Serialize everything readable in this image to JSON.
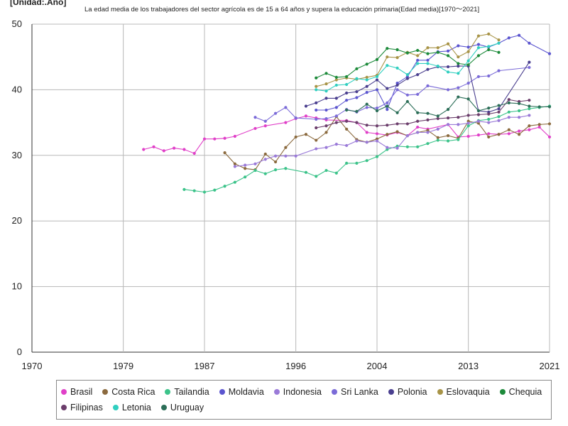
{
  "chart_data": {
    "type": "line",
    "unit_label": "[Unidad:.Año]",
    "title": "La edad media de los trabajadores del sector agrícola es de 15 a 64 años y supera la educación primaria(Edad media)[1970～2021]",
    "xlim": [
      1970,
      2021
    ],
    "ylim": [
      0,
      50
    ],
    "x_ticks": [
      "1970",
      "1979",
      "1987",
      "1996",
      "2004",
      "2013",
      "2021"
    ],
    "y_ticks": [
      "0",
      "10",
      "20",
      "30",
      "40",
      "50"
    ],
    "grid": true,
    "legend_position": "bottom",
    "series": [
      {
        "name": "Brasil",
        "color": "#e040c8",
        "points": [
          [
            1981,
            30.9
          ],
          [
            1982,
            31.3
          ],
          [
            1983,
            30.7
          ],
          [
            1984,
            31.1
          ],
          [
            1985,
            30.9
          ],
          [
            1986,
            30.3
          ],
          [
            1987,
            32.5
          ],
          [
            1988,
            32.5
          ],
          [
            1989,
            32.6
          ],
          [
            1990,
            32.9
          ],
          [
            1992,
            34.1
          ],
          [
            1993,
            34.5
          ],
          [
            1995,
            35.0
          ],
          [
            1996,
            35.6
          ],
          [
            1997,
            36.0
          ],
          [
            1998,
            35.7
          ],
          [
            1999,
            35.4
          ],
          [
            2001,
            35.3
          ],
          [
            2002,
            35.0
          ],
          [
            2003,
            33.5
          ],
          [
            2004,
            33.3
          ],
          [
            2005,
            33.1
          ],
          [
            2006,
            33.5
          ],
          [
            2007,
            33.0
          ],
          [
            2008,
            34.3
          ],
          [
            2009,
            34.0
          ],
          [
            2011,
            34.7
          ],
          [
            2012,
            32.8
          ],
          [
            2013,
            32.9
          ],
          [
            2014,
            33.1
          ],
          [
            2015,
            33.3
          ],
          [
            2016,
            33.2
          ],
          [
            2017,
            33.3
          ],
          [
            2018,
            33.7
          ],
          [
            2019,
            33.9
          ],
          [
            2020,
            34.3
          ],
          [
            2021,
            32.8
          ]
        ]
      },
      {
        "name": "Costa Rica",
        "color": "#8b6a3e",
        "points": [
          [
            1989,
            30.4
          ],
          [
            1990,
            28.7
          ],
          [
            1991,
            28.0
          ],
          [
            1992,
            27.8
          ],
          [
            1993,
            30.2
          ],
          [
            1994,
            29.0
          ],
          [
            1995,
            31.2
          ],
          [
            1996,
            32.8
          ],
          [
            1997,
            33.2
          ],
          [
            1998,
            32.3
          ],
          [
            1999,
            33.5
          ],
          [
            2000,
            35.9
          ],
          [
            2001,
            34.0
          ],
          [
            2002,
            32.4
          ],
          [
            2003,
            32.0
          ],
          [
            2004,
            32.5
          ],
          [
            2005,
            33.2
          ],
          [
            2006,
            33.6
          ],
          [
            2007,
            33.0
          ],
          [
            2008,
            33.5
          ],
          [
            2009,
            33.8
          ],
          [
            2010,
            32.7
          ],
          [
            2011,
            33.0
          ],
          [
            2012,
            32.6
          ],
          [
            2013,
            35.2
          ],
          [
            2014,
            34.9
          ],
          [
            2015,
            32.8
          ],
          [
            2016,
            33.2
          ],
          [
            2017,
            33.9
          ],
          [
            2018,
            33.2
          ],
          [
            2019,
            34.5
          ],
          [
            2020,
            34.7
          ],
          [
            2021,
            34.8
          ]
        ]
      },
      {
        "name": "Tailandia",
        "color": "#3cc38a",
        "points": [
          [
            1985,
            24.8
          ],
          [
            1986,
            24.6
          ],
          [
            1987,
            24.4
          ],
          [
            1988,
            24.7
          ],
          [
            1989,
            25.3
          ],
          [
            1990,
            25.9
          ],
          [
            1991,
            26.7
          ],
          [
            1992,
            27.7
          ],
          [
            1993,
            27.2
          ],
          [
            1994,
            27.8
          ],
          [
            1995,
            28.0
          ],
          [
            1997,
            27.4
          ],
          [
            1998,
            26.8
          ],
          [
            1999,
            27.7
          ],
          [
            2000,
            27.3
          ],
          [
            2001,
            28.8
          ],
          [
            2002,
            28.8
          ],
          [
            2003,
            29.2
          ],
          [
            2004,
            29.8
          ],
          [
            2005,
            30.9
          ],
          [
            2006,
            31.4
          ],
          [
            2007,
            31.3
          ],
          [
            2008,
            31.3
          ],
          [
            2009,
            31.8
          ],
          [
            2010,
            32.3
          ],
          [
            2011,
            32.2
          ],
          [
            2012,
            32.4
          ],
          [
            2013,
            34.5
          ],
          [
            2014,
            35.3
          ],
          [
            2015,
            35.5
          ],
          [
            2016,
            35.9
          ],
          [
            2017,
            36.6
          ],
          [
            2018,
            36.8
          ],
          [
            2019,
            37.1
          ],
          [
            2020,
            37.3
          ],
          [
            2021,
            37.5
          ]
        ]
      },
      {
        "name": "Moldavia",
        "color": "#5b55cf",
        "points": [
          [
            1998,
            36.9
          ],
          [
            1999,
            36.9
          ],
          [
            2000,
            37.3
          ],
          [
            2001,
            38.4
          ],
          [
            2002,
            38.8
          ],
          [
            2003,
            39.6
          ],
          [
            2004,
            40.0
          ],
          [
            2005,
            37.0
          ],
          [
            2006,
            41.0
          ],
          [
            2007,
            42.0
          ],
          [
            2008,
            44.5
          ],
          [
            2009,
            44.5
          ],
          [
            2010,
            45.8
          ],
          [
            2011,
            45.9
          ],
          [
            2012,
            46.7
          ],
          [
            2013,
            46.5
          ],
          [
            2014,
            46.9
          ],
          [
            2015,
            46.5
          ],
          [
            2016,
            47.1
          ],
          [
            2017,
            47.9
          ],
          [
            2018,
            48.3
          ],
          [
            2019,
            47.1
          ],
          [
            2021,
            45.5
          ]
        ]
      },
      {
        "name": "Indonesia",
        "color": "#9a7ad8",
        "points": [
          [
            1990,
            28.3
          ],
          [
            1991,
            28.5
          ],
          [
            1992,
            28.7
          ],
          [
            1993,
            29.4
          ],
          [
            1994,
            29.9
          ],
          [
            1995,
            29.9
          ],
          [
            1996,
            29.9
          ],
          [
            1998,
            31.0
          ],
          [
            1999,
            31.2
          ],
          [
            2000,
            31.7
          ],
          [
            2001,
            31.5
          ],
          [
            2002,
            32.2
          ],
          [
            2003,
            32.0
          ],
          [
            2004,
            32.2
          ],
          [
            2005,
            31.2
          ],
          [
            2006,
            31.1
          ],
          [
            2007,
            33.0
          ],
          [
            2008,
            33.5
          ],
          [
            2009,
            33.5
          ],
          [
            2010,
            34.0
          ],
          [
            2011,
            34.7
          ],
          [
            2012,
            34.7
          ],
          [
            2013,
            34.9
          ],
          [
            2014,
            35.2
          ],
          [
            2015,
            35.0
          ],
          [
            2016,
            35.3
          ],
          [
            2017,
            35.8
          ],
          [
            2018,
            35.8
          ],
          [
            2019,
            36.1
          ]
        ]
      },
      {
        "name": "Sri Lanka",
        "color": "#7b6bd8",
        "points": [
          [
            1992,
            35.8
          ],
          [
            1993,
            35.2
          ],
          [
            1994,
            36.4
          ],
          [
            1995,
            37.3
          ],
          [
            1996,
            35.7
          ],
          [
            1998,
            35.5
          ],
          [
            1999,
            35.6
          ],
          [
            2000,
            36.0
          ],
          [
            2001,
            37.0
          ],
          [
            2002,
            36.6
          ],
          [
            2003,
            37.3
          ],
          [
            2004,
            37.2
          ],
          [
            2005,
            38.0
          ],
          [
            2006,
            40.0
          ],
          [
            2007,
            39.2
          ],
          [
            2008,
            39.3
          ],
          [
            2009,
            40.6
          ],
          [
            2011,
            40.0
          ],
          [
            2012,
            40.3
          ],
          [
            2013,
            41.0
          ],
          [
            2014,
            42.0
          ],
          [
            2015,
            42.1
          ],
          [
            2016,
            42.9
          ],
          [
            2019,
            43.4
          ]
        ]
      },
      {
        "name": "Polonia",
        "color": "#4a3f8f",
        "points": [
          [
            1997,
            37.5
          ],
          [
            1998,
            38.0
          ],
          [
            1999,
            38.7
          ],
          [
            2000,
            38.7
          ],
          [
            2001,
            39.5
          ],
          [
            2002,
            39.7
          ],
          [
            2003,
            40.5
          ],
          [
            2004,
            41.5
          ],
          [
            2005,
            40.2
          ],
          [
            2006,
            40.7
          ],
          [
            2007,
            41.7
          ],
          [
            2008,
            42.3
          ],
          [
            2009,
            43.1
          ],
          [
            2010,
            43.5
          ],
          [
            2011,
            43.5
          ],
          [
            2012,
            43.6
          ],
          [
            2013,
            43.6
          ],
          [
            2014,
            36.8
          ],
          [
            2015,
            36.6
          ],
          [
            2016,
            37.1
          ],
          [
            2019,
            44.2
          ]
        ]
      },
      {
        "name": "Eslovaquia",
        "color": "#a89447",
        "points": [
          [
            1998,
            40.5
          ],
          [
            1999,
            40.9
          ],
          [
            2000,
            41.5
          ],
          [
            2001,
            41.8
          ],
          [
            2002,
            41.6
          ],
          [
            2003,
            41.9
          ],
          [
            2004,
            42.2
          ],
          [
            2005,
            45.0
          ],
          [
            2006,
            44.9
          ],
          [
            2007,
            45.7
          ],
          [
            2008,
            45.2
          ],
          [
            2009,
            46.4
          ],
          [
            2010,
            46.4
          ],
          [
            2011,
            47.0
          ],
          [
            2012,
            45.0
          ],
          [
            2013,
            45.8
          ],
          [
            2014,
            48.2
          ],
          [
            2015,
            48.5
          ],
          [
            2016,
            47.6
          ]
        ]
      },
      {
        "name": "Chequia",
        "color": "#1c8a3a",
        "points": [
          [
            1998,
            41.8
          ],
          [
            1999,
            42.5
          ],
          [
            2000,
            41.9
          ],
          [
            2001,
            42.0
          ],
          [
            2002,
            43.2
          ],
          [
            2003,
            43.9
          ],
          [
            2004,
            44.6
          ],
          [
            2005,
            46.3
          ],
          [
            2006,
            46.1
          ],
          [
            2007,
            45.6
          ],
          [
            2008,
            46.0
          ],
          [
            2009,
            45.5
          ],
          [
            2010,
            45.7
          ],
          [
            2011,
            45.2
          ],
          [
            2012,
            44.0
          ],
          [
            2013,
            43.8
          ],
          [
            2014,
            45.2
          ],
          [
            2015,
            46.1
          ],
          [
            2016,
            45.7
          ]
        ]
      },
      {
        "name": "Filipinas",
        "color": "#6b3d6b",
        "points": [
          [
            1998,
            34.2
          ],
          [
            1999,
            34.5
          ],
          [
            2000,
            35.0
          ],
          [
            2001,
            35.2
          ],
          [
            2002,
            35.0
          ],
          [
            2003,
            34.6
          ],
          [
            2004,
            34.5
          ],
          [
            2005,
            34.6
          ],
          [
            2006,
            34.8
          ],
          [
            2007,
            34.8
          ],
          [
            2008,
            35.2
          ],
          [
            2009,
            35.4
          ],
          [
            2010,
            35.6
          ],
          [
            2011,
            35.7
          ],
          [
            2012,
            35.8
          ],
          [
            2013,
            36.1
          ],
          [
            2014,
            36.2
          ],
          [
            2015,
            36.3
          ],
          [
            2016,
            36.6
          ],
          [
            2017,
            38.5
          ],
          [
            2018,
            38.2
          ],
          [
            2019,
            38.4
          ]
        ]
      },
      {
        "name": "Letonia",
        "color": "#30cfc0",
        "points": [
          [
            1998,
            40.0
          ],
          [
            1999,
            39.8
          ],
          [
            2000,
            40.7
          ],
          [
            2001,
            40.8
          ],
          [
            2002,
            41.7
          ],
          [
            2003,
            41.5
          ],
          [
            2004,
            42.0
          ],
          [
            2005,
            43.7
          ],
          [
            2006,
            43.3
          ],
          [
            2007,
            42.3
          ],
          [
            2008,
            44.0
          ],
          [
            2009,
            44.0
          ],
          [
            2010,
            43.6
          ],
          [
            2011,
            42.7
          ],
          [
            2012,
            42.5
          ],
          [
            2013,
            44.4
          ],
          [
            2014,
            46.4
          ],
          [
            2015,
            46.6
          ],
          [
            2016,
            47.1
          ]
        ]
      },
      {
        "name": "Uruguay",
        "color": "#2c6e58",
        "points": [
          [
            2001,
            36.9
          ],
          [
            2002,
            36.7
          ],
          [
            2003,
            37.8
          ],
          [
            2004,
            36.8
          ],
          [
            2005,
            37.5
          ],
          [
            2006,
            36.5
          ],
          [
            2007,
            38.2
          ],
          [
            2008,
            36.5
          ],
          [
            2009,
            36.4
          ],
          [
            2010,
            36.0
          ],
          [
            2011,
            37.0
          ],
          [
            2012,
            38.9
          ],
          [
            2013,
            38.6
          ],
          [
            2014,
            36.8
          ],
          [
            2015,
            37.2
          ],
          [
            2016,
            37.6
          ],
          [
            2017,
            38.0
          ],
          [
            2018,
            37.9
          ],
          [
            2019,
            37.5
          ],
          [
            2020,
            37.4
          ],
          [
            2021,
            37.4
          ]
        ]
      }
    ]
  }
}
